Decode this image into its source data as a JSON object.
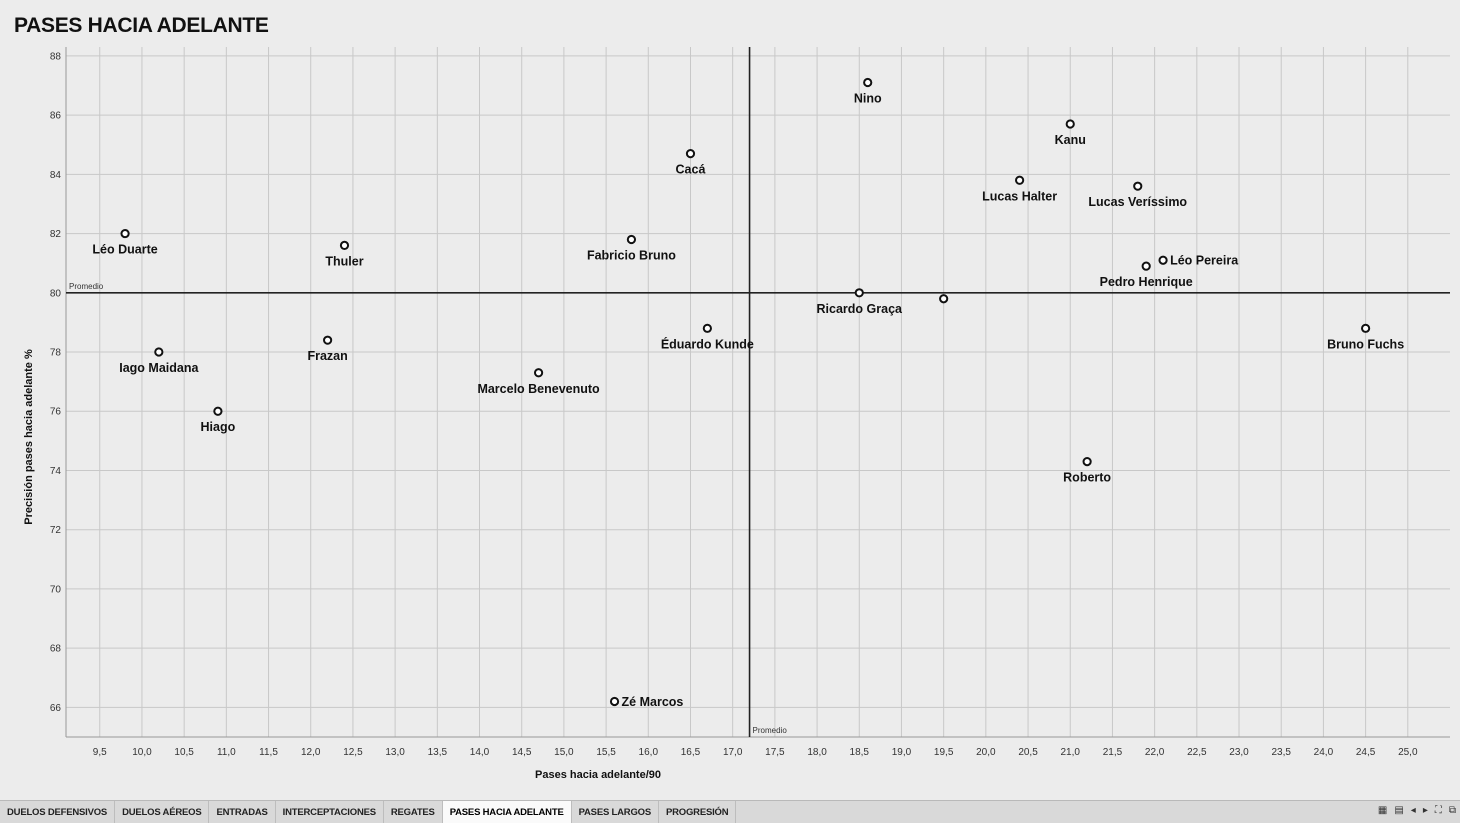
{
  "title": "PASES HACIA ADELANTE",
  "tabs": [
    {
      "label": "DUELOS DEFENSIVOS",
      "active": false
    },
    {
      "label": "DUELOS AÉREOS",
      "active": false
    },
    {
      "label": "ENTRADAS",
      "active": false
    },
    {
      "label": "INTERCEPTACIONES",
      "active": false
    },
    {
      "label": "REGATES",
      "active": false
    },
    {
      "label": "PASES HACIA ADELANTE",
      "active": true
    },
    {
      "label": "PASES LARGOS",
      "active": false
    },
    {
      "label": "PROGRESIÓN",
      "active": false
    }
  ],
  "controls": [
    {
      "name": "view-grid-icon",
      "glyph": "▦"
    },
    {
      "name": "page-icon",
      "glyph": "▤"
    },
    {
      "name": "prev-icon",
      "glyph": "◂"
    },
    {
      "name": "next-icon",
      "glyph": "▸"
    },
    {
      "name": "fullscreen-icon",
      "glyph": "⛶"
    },
    {
      "name": "expand-icon",
      "glyph": "⧉"
    }
  ],
  "chart_data": {
    "type": "scatter",
    "title": "PASES HACIA ADELANTE",
    "xlabel": "Pases hacia adelante/90",
    "ylabel": "Precisión pases hacia adelante %",
    "xlim": [
      9.1,
      25.5
    ],
    "ylim": [
      65,
      88.3
    ],
    "xticks": [
      9.5,
      10.0,
      10.5,
      11.0,
      11.5,
      12.0,
      12.5,
      13.0,
      13.5,
      14.0,
      14.5,
      15.0,
      15.5,
      16.0,
      16.5,
      17.0,
      17.5,
      18.0,
      18.5,
      19.0,
      19.5,
      20.0,
      20.5,
      21.0,
      21.5,
      22.0,
      22.5,
      23.0,
      23.5,
      24.0,
      24.5,
      25.0
    ],
    "yticks": [
      66,
      68,
      70,
      72,
      74,
      76,
      78,
      80,
      82,
      84,
      86,
      88
    ],
    "grid": true,
    "reference_lines": {
      "x_avg": {
        "value": 17.2,
        "label": "Promedio"
      },
      "y_avg": {
        "value": 80.0,
        "label": "Promedio"
      }
    },
    "points": [
      {
        "name": "Léo Duarte",
        "x": 9.8,
        "y": 82.0,
        "label_pos": "below"
      },
      {
        "name": "Iago Maidana",
        "x": 10.2,
        "y": 78.0,
        "label_pos": "below"
      },
      {
        "name": "Hiago",
        "x": 10.9,
        "y": 76.0,
        "label_pos": "below"
      },
      {
        "name": "Frazan",
        "x": 12.2,
        "y": 78.4,
        "label_pos": "below"
      },
      {
        "name": "Thuler",
        "x": 12.4,
        "y": 81.6,
        "label_pos": "below"
      },
      {
        "name": "Marcelo Benevenuto",
        "x": 14.7,
        "y": 77.3,
        "label_pos": "below"
      },
      {
        "name": "Zé Marcos",
        "x": 15.6,
        "y": 66.2,
        "label_pos": "right"
      },
      {
        "name": "Fabricio Bruno",
        "x": 15.8,
        "y": 81.8,
        "label_pos": "below"
      },
      {
        "name": "Cacá",
        "x": 16.5,
        "y": 84.7,
        "label_pos": "below"
      },
      {
        "name": "Éduardo Kunde",
        "x": 16.7,
        "y": 78.8,
        "label_pos": "below"
      },
      {
        "name": "Ricardo Graça",
        "x": 18.5,
        "y": 80.0,
        "label_pos": "below"
      },
      {
        "name": "",
        "x": 19.5,
        "y": 79.8,
        "label_pos": "below"
      },
      {
        "name": "Nino",
        "x": 18.6,
        "y": 87.1,
        "label_pos": "below"
      },
      {
        "name": "Lucas Halter",
        "x": 20.4,
        "y": 83.8,
        "label_pos": "below"
      },
      {
        "name": "Kanu",
        "x": 21.0,
        "y": 85.7,
        "label_pos": "below"
      },
      {
        "name": "Lucas Veríssimo",
        "x": 21.8,
        "y": 83.6,
        "label_pos": "below"
      },
      {
        "name": "Pedro Henrique",
        "x": 21.9,
        "y": 80.9,
        "label_pos": "below"
      },
      {
        "name": "Léo Pereira",
        "x": 22.1,
        "y": 81.1,
        "label_pos": "right"
      },
      {
        "name": "Roberto",
        "x": 21.2,
        "y": 74.3,
        "label_pos": "below"
      },
      {
        "name": "Bruno Fuchs",
        "x": 24.5,
        "y": 78.8,
        "label_pos": "below"
      }
    ],
    "marker": {
      "shape": "open-circle",
      "color": "#111111"
    },
    "colors": {
      "grid": "#c8c8c8",
      "avg_line": "#222222",
      "background": "#ececec"
    }
  }
}
